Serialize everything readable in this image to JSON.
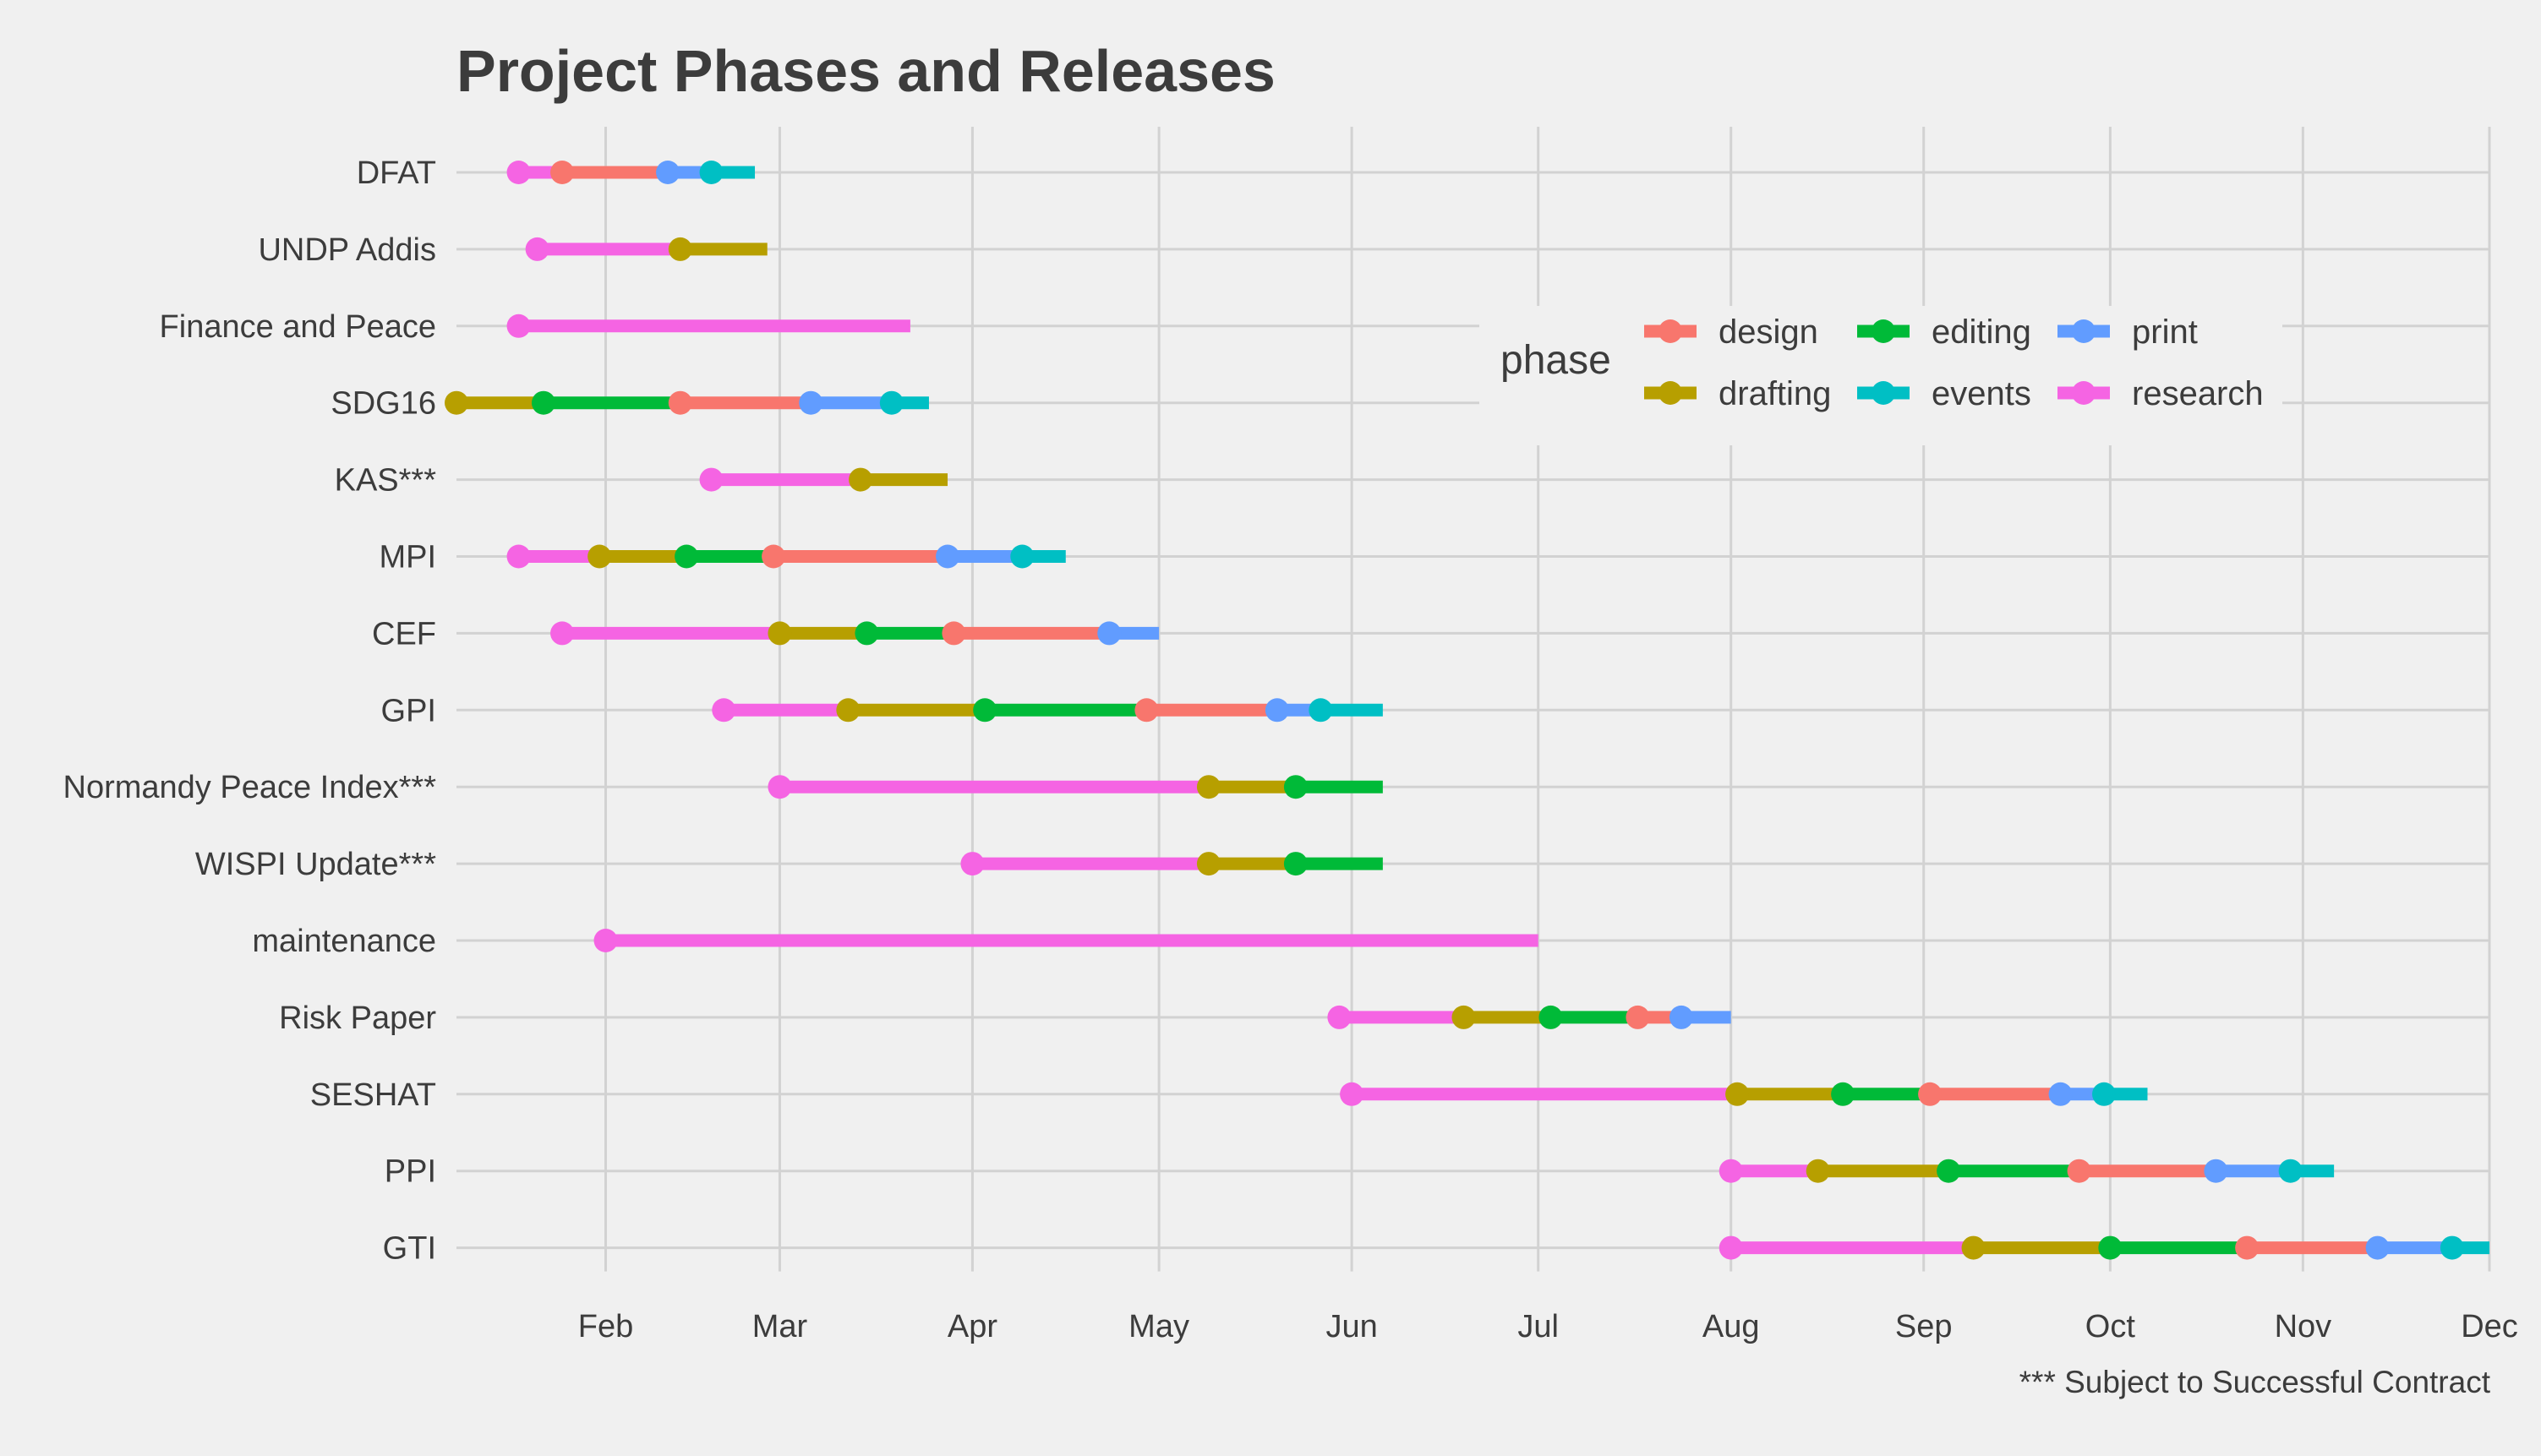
{
  "chart_data": {
    "type": "gantt",
    "title": "Project Phases and Releases",
    "caption": "*** Subject to Successful Contract",
    "legend": {
      "title": "phase",
      "position": "top-right",
      "items": [
        {
          "name": "design",
          "color": "#F8766D"
        },
        {
          "name": "drafting",
          "color": "#B79F00"
        },
        {
          "name": "editing",
          "color": "#00BA38"
        },
        {
          "name": "events",
          "color": "#00BFC4"
        },
        {
          "name": "print",
          "color": "#619CFF"
        },
        {
          "name": "research",
          "color": "#F564E3"
        }
      ]
    },
    "x_axis": {
      "type": "date",
      "range": [
        "2018-01-08",
        "2018-12-01"
      ],
      "ticks": [
        {
          "label": "Feb",
          "date": "2018-02-01"
        },
        {
          "label": "Mar",
          "date": "2018-03-01"
        },
        {
          "label": "Apr",
          "date": "2018-04-01"
        },
        {
          "label": "May",
          "date": "2018-05-01"
        },
        {
          "label": "Jun",
          "date": "2018-06-01"
        },
        {
          "label": "Jul",
          "date": "2018-07-01"
        },
        {
          "label": "Aug",
          "date": "2018-08-01"
        },
        {
          "label": "Sep",
          "date": "2018-09-01"
        },
        {
          "label": "Oct",
          "date": "2018-10-01"
        },
        {
          "label": "Nov",
          "date": "2018-11-01"
        },
        {
          "label": "Dec",
          "date": "2018-12-01"
        }
      ]
    },
    "grid": true,
    "projects": [
      {
        "name": "DFAT",
        "phases": [
          {
            "phase": "research",
            "start": "2018-01-18",
            "end": "2018-01-25"
          },
          {
            "phase": "design",
            "start": "2018-01-25",
            "end": "2018-02-11"
          },
          {
            "phase": "print",
            "start": "2018-02-11",
            "end": "2018-02-18"
          },
          {
            "phase": "events",
            "start": "2018-02-18",
            "end": "2018-02-25"
          }
        ]
      },
      {
        "name": "UNDP Addis",
        "phases": [
          {
            "phase": "research",
            "start": "2018-01-21",
            "end": "2018-02-13"
          },
          {
            "phase": "drafting",
            "start": "2018-02-13",
            "end": "2018-02-27"
          }
        ]
      },
      {
        "name": "Finance and Peace",
        "phases": [
          {
            "phase": "research",
            "start": "2018-01-18",
            "end": "2018-03-22"
          }
        ]
      },
      {
        "name": "SDG16",
        "phases": [
          {
            "phase": "drafting",
            "start": "2018-01-08",
            "end": "2018-01-22"
          },
          {
            "phase": "editing",
            "start": "2018-01-22",
            "end": "2018-02-13"
          },
          {
            "phase": "design",
            "start": "2018-02-13",
            "end": "2018-03-06"
          },
          {
            "phase": "print",
            "start": "2018-03-06",
            "end": "2018-03-19"
          },
          {
            "phase": "events",
            "start": "2018-03-19",
            "end": "2018-03-25"
          }
        ]
      },
      {
        "name": "KAS***",
        "phases": [
          {
            "phase": "research",
            "start": "2018-02-18",
            "end": "2018-03-14"
          },
          {
            "phase": "drafting",
            "start": "2018-03-14",
            "end": "2018-03-28"
          }
        ]
      },
      {
        "name": "MPI",
        "phases": [
          {
            "phase": "research",
            "start": "2018-01-18",
            "end": "2018-01-31"
          },
          {
            "phase": "drafting",
            "start": "2018-01-31",
            "end": "2018-02-14"
          },
          {
            "phase": "editing",
            "start": "2018-02-14",
            "end": "2018-02-28"
          },
          {
            "phase": "design",
            "start": "2018-02-28",
            "end": "2018-03-28"
          },
          {
            "phase": "print",
            "start": "2018-03-28",
            "end": "2018-04-09"
          },
          {
            "phase": "events",
            "start": "2018-04-09",
            "end": "2018-04-16"
          }
        ]
      },
      {
        "name": "CEF",
        "phases": [
          {
            "phase": "research",
            "start": "2018-01-25",
            "end": "2018-03-01"
          },
          {
            "phase": "drafting",
            "start": "2018-03-01",
            "end": "2018-03-15"
          },
          {
            "phase": "editing",
            "start": "2018-03-15",
            "end": "2018-03-29"
          },
          {
            "phase": "design",
            "start": "2018-03-29",
            "end": "2018-04-23"
          },
          {
            "phase": "print",
            "start": "2018-04-23",
            "end": "2018-05-01"
          }
        ]
      },
      {
        "name": "GPI",
        "phases": [
          {
            "phase": "research",
            "start": "2018-02-20",
            "end": "2018-03-12"
          },
          {
            "phase": "drafting",
            "start": "2018-03-12",
            "end": "2018-04-03"
          },
          {
            "phase": "editing",
            "start": "2018-04-03",
            "end": "2018-04-29"
          },
          {
            "phase": "design",
            "start": "2018-04-29",
            "end": "2018-05-20"
          },
          {
            "phase": "print",
            "start": "2018-05-20",
            "end": "2018-05-27"
          },
          {
            "phase": "events",
            "start": "2018-05-27",
            "end": "2018-06-06"
          }
        ]
      },
      {
        "name": "Normandy Peace Index***",
        "phases": [
          {
            "phase": "research",
            "start": "2018-03-01",
            "end": "2018-05-09"
          },
          {
            "phase": "drafting",
            "start": "2018-05-09",
            "end": "2018-05-23"
          },
          {
            "phase": "editing",
            "start": "2018-05-23",
            "end": "2018-06-06"
          }
        ]
      },
      {
        "name": "WISPI Update***",
        "phases": [
          {
            "phase": "research",
            "start": "2018-04-01",
            "end": "2018-05-09"
          },
          {
            "phase": "drafting",
            "start": "2018-05-09",
            "end": "2018-05-23"
          },
          {
            "phase": "editing",
            "start": "2018-05-23",
            "end": "2018-06-06"
          }
        ]
      },
      {
        "name": "maintenance",
        "phases": [
          {
            "phase": "research",
            "start": "2018-02-01",
            "end": "2018-07-01"
          }
        ]
      },
      {
        "name": "Risk Paper",
        "phases": [
          {
            "phase": "research",
            "start": "2018-05-30",
            "end": "2018-06-19"
          },
          {
            "phase": "drafting",
            "start": "2018-06-19",
            "end": "2018-07-03"
          },
          {
            "phase": "editing",
            "start": "2018-07-03",
            "end": "2018-07-17"
          },
          {
            "phase": "design",
            "start": "2018-07-17",
            "end": "2018-07-24"
          },
          {
            "phase": "print",
            "start": "2018-07-24",
            "end": "2018-08-01"
          }
        ]
      },
      {
        "name": "SESHAT",
        "phases": [
          {
            "phase": "research",
            "start": "2018-06-01",
            "end": "2018-08-02"
          },
          {
            "phase": "drafting",
            "start": "2018-08-02",
            "end": "2018-08-19"
          },
          {
            "phase": "editing",
            "start": "2018-08-19",
            "end": "2018-09-02"
          },
          {
            "phase": "design",
            "start": "2018-09-02",
            "end": "2018-09-23"
          },
          {
            "phase": "print",
            "start": "2018-09-23",
            "end": "2018-09-30"
          },
          {
            "phase": "events",
            "start": "2018-09-30",
            "end": "2018-10-07"
          }
        ]
      },
      {
        "name": "PPI",
        "phases": [
          {
            "phase": "research",
            "start": "2018-08-01",
            "end": "2018-08-15"
          },
          {
            "phase": "drafting",
            "start": "2018-08-15",
            "end": "2018-09-05"
          },
          {
            "phase": "editing",
            "start": "2018-09-05",
            "end": "2018-09-26"
          },
          {
            "phase": "design",
            "start": "2018-09-26",
            "end": "2018-10-18"
          },
          {
            "phase": "print",
            "start": "2018-10-18",
            "end": "2018-10-30"
          },
          {
            "phase": "events",
            "start": "2018-10-30",
            "end": "2018-11-06"
          }
        ]
      },
      {
        "name": "GTI",
        "phases": [
          {
            "phase": "research",
            "start": "2018-08-01",
            "end": "2018-09-09"
          },
          {
            "phase": "drafting",
            "start": "2018-09-09",
            "end": "2018-10-01"
          },
          {
            "phase": "editing",
            "start": "2018-10-01",
            "end": "2018-10-23"
          },
          {
            "phase": "design",
            "start": "2018-10-23",
            "end": "2018-11-13"
          },
          {
            "phase": "print",
            "start": "2018-11-13",
            "end": "2018-11-25"
          },
          {
            "phase": "events",
            "start": "2018-11-25",
            "end": "2018-12-01"
          }
        ]
      }
    ]
  }
}
